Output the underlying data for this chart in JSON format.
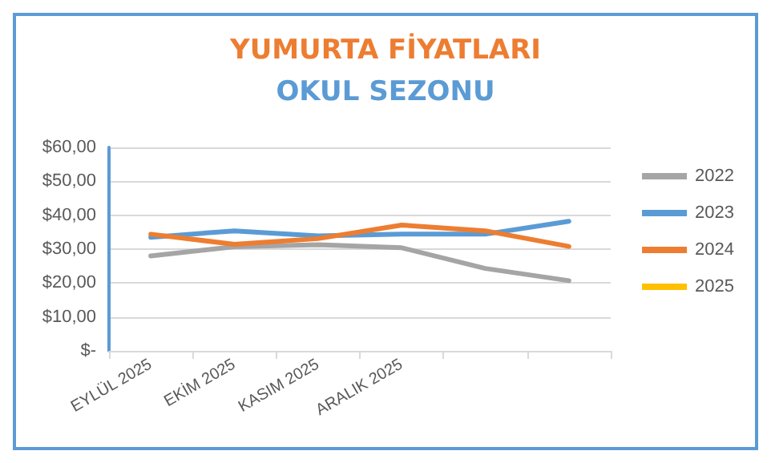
{
  "chart_data": {
    "type": "line",
    "title": "YUMURTA FİYATLARI",
    "subtitle": "OKUL SEZONU",
    "categories": [
      "EYLÜL 2025",
      "EKİM 2025",
      "KASIM 2025",
      "ARALIK 2025",
      null,
      null
    ],
    "series": [
      {
        "name": "2022",
        "color": "#a5a5a5",
        "values": [
          28,
          30.7,
          31.3,
          30.4,
          24.3,
          20.7
        ]
      },
      {
        "name": "2023",
        "color": "#5b9bd5",
        "values": [
          33.5,
          35.4,
          33.9,
          34.4,
          34.4,
          38.2
        ]
      },
      {
        "name": "2024",
        "color": "#ed7d31",
        "values": [
          34.4,
          31.4,
          33.1,
          37.1,
          35.4,
          30.8
        ]
      },
      {
        "name": "2025",
        "color": "#ffc000",
        "values": [
          null,
          null,
          null,
          null,
          null,
          null
        ]
      }
    ],
    "ylim": [
      0,
      60
    ],
    "yticks": [
      {
        "value": 0,
        "label": "$-"
      },
      {
        "value": 10,
        "label": "$10,00"
      },
      {
        "value": 20,
        "label": "$20,00"
      },
      {
        "value": 30,
        "label": "$30,00"
      },
      {
        "value": 40,
        "label": "$40,00"
      },
      {
        "value": 50,
        "label": "$50,00"
      },
      {
        "value": 60,
        "label": "$60,00"
      }
    ],
    "grid": "y",
    "legend": "right",
    "marker": "none",
    "line_style": "solid"
  }
}
